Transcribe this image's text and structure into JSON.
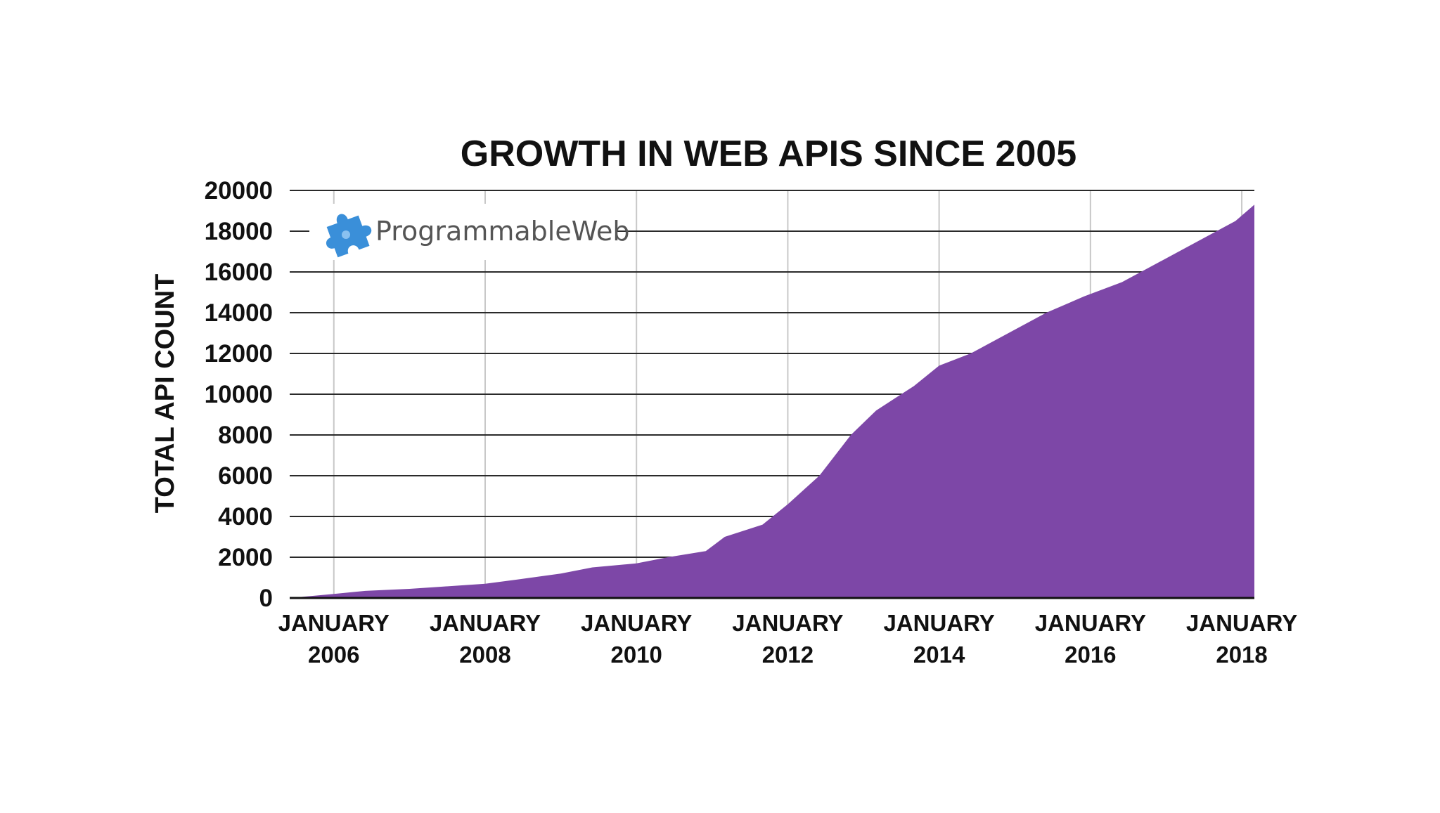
{
  "chart_data": {
    "type": "area",
    "title": "GROWTH IN WEB APIS SINCE 2005",
    "xlabel": "",
    "ylabel": "TOTAL API COUNT",
    "xlim": [
      "2005-06",
      "2018-03"
    ],
    "ylim": [
      0,
      20000
    ],
    "y_ticks": [
      "0",
      "2000",
      "4000",
      "6000",
      "8000",
      "10000",
      "12000",
      "14000",
      "16000",
      "18000",
      "20000"
    ],
    "x_ticks": [
      {
        "date": "2006-01",
        "line1": "JANUARY",
        "line2": "2006"
      },
      {
        "date": "2008-01",
        "line1": "JANUARY",
        "line2": "2008"
      },
      {
        "date": "2010-01",
        "line1": "JANUARY",
        "line2": "2010"
      },
      {
        "date": "2012-01",
        "line1": "JANUARY",
        "line2": "2012"
      },
      {
        "date": "2014-01",
        "line1": "JANUARY",
        "line2": "2014"
      },
      {
        "date": "2016-01",
        "line1": "JANUARY",
        "line2": "2016"
      },
      {
        "date": "2018-01",
        "line1": "JANUARY",
        "line2": "2018"
      }
    ],
    "grid": true,
    "color": "#7d47a7",
    "x": [
      "2005-06",
      "2006-01",
      "2006-06",
      "2007-01",
      "2007-06",
      "2008-01",
      "2008-06",
      "2009-01",
      "2009-06",
      "2010-01",
      "2010-06",
      "2010-12",
      "2011-03",
      "2011-09",
      "2012-01",
      "2012-06",
      "2012-11",
      "2013-03",
      "2013-09",
      "2014-01",
      "2014-06",
      "2014-12",
      "2015-06",
      "2015-12",
      "2016-06",
      "2016-12",
      "2017-06",
      "2017-12",
      "2018-03"
    ],
    "values": [
      0,
      200,
      350,
      450,
      550,
      700,
      900,
      1200,
      1500,
      1700,
      2000,
      2300,
      3000,
      3600,
      4600,
      6000,
      8000,
      9200,
      10400,
      11400,
      12000,
      13000,
      14000,
      14800,
      15500,
      16500,
      17500,
      18500,
      19300
    ]
  },
  "branding": {
    "logo_text": "ProgrammableWeb",
    "logo_icon": "puzzle-icon",
    "logo_color": "#3a8fd9"
  }
}
